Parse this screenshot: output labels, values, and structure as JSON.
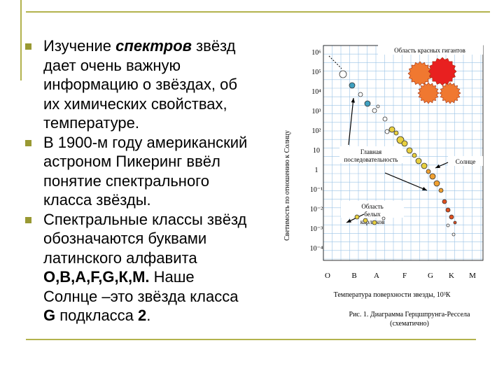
{
  "slide": {
    "bullets": [
      [
        [
          {
            "t": "Изучение "
          },
          {
            "t": "спектров",
            "s": "bi"
          },
          {
            "t": " звёзд"
          }
        ],
        [
          {
            "t": "дает очень важную"
          }
        ],
        [
          {
            "t": "информацию о звёздах, об"
          }
        ],
        [
          {
            "t": "их химических свойствах,"
          }
        ],
        [
          {
            "t": "температуре."
          }
        ]
      ],
      [
        [
          {
            "t": "В 1900-м году американский"
          }
        ],
        [
          {
            "t": "астроном Пикеринг ввёл"
          }
        ],
        [
          {
            "t": "понятие спектрального"
          }
        ],
        [
          {
            "t": "класса звёзды."
          }
        ]
      ],
      [
        [
          {
            "t": "Спектральные классы звёзд"
          }
        ],
        [
          {
            "t": "обозначаются буквами"
          }
        ],
        [
          {
            "t": "латинского алфавита"
          }
        ],
        [
          {
            "t": "O,B,A,F,G,К,M.",
            "s": "b"
          },
          {
            "t": " Наше"
          }
        ],
        [
          {
            "t": "Солнце –это звёзда класса"
          }
        ],
        [
          {
            "t": "G",
            "s": "b"
          },
          {
            "t": " подкласса "
          },
          {
            "t": "2",
            "s": "b"
          },
          {
            "t": "."
          }
        ]
      ]
    ]
  },
  "diagram": {
    "y_label": "Светимость по отношению к Солнцу",
    "y_ticks": [
      "10⁶",
      "10⁵",
      "10⁴",
      "10³",
      "10²",
      "10",
      "1",
      "10⁻¹",
      "10⁻²",
      "10⁻³",
      "10⁻⁴"
    ],
    "x_ticks": [
      "O",
      "B",
      "A",
      "F",
      "G",
      "K",
      "M"
    ],
    "x_label": "Температура поверхности звезды, 10³К",
    "labels": {
      "giants": "Область красных гигантов",
      "main": "Главная последовательность",
      "sun": "Солнце",
      "dwarfs": "Область белых карликов"
    },
    "caption": [
      "Рис. 1. Диаграмма Герцшпрунга-Рессела",
      "(схематично)"
    ]
  }
}
